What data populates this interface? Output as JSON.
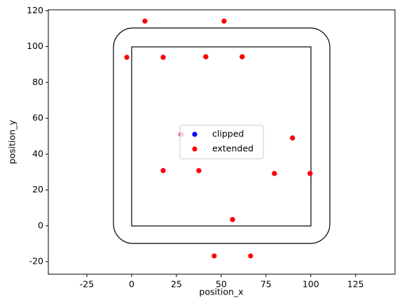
{
  "chart_data": {
    "type": "scatter",
    "xlabel": "position_x",
    "ylabel": "position_y",
    "xlim": [
      -46.5,
      147
    ],
    "ylim": [
      -27,
      120.5
    ],
    "xticks": [
      -25,
      0,
      25,
      50,
      75,
      100,
      125
    ],
    "yticks": [
      -20,
      0,
      20,
      40,
      60,
      80,
      100,
      120
    ],
    "legend": "center",
    "series": [
      {
        "name": "clipped",
        "color": "#0000ff",
        "x": [
          17.6,
          41.4,
          61.7,
          27.7,
          89.8,
          17.6,
          37.5,
          79.7,
          99.6,
          56.3
        ],
        "values": [
          94,
          94.3,
          94.3,
          51,
          49,
          30.8,
          30.8,
          29.2,
          29.2,
          3.5
        ]
      },
      {
        "name": "extended",
        "color": "#ff0000",
        "x": [
          7.4,
          51.6,
          -2.7,
          17.6,
          41.4,
          61.7,
          27.7,
          89.8,
          17.6,
          37.5,
          79.7,
          99.6,
          56.3,
          46.1,
          66.4
        ],
        "values": [
          114.2,
          114.2,
          94,
          94,
          94.3,
          94.3,
          51,
          49,
          30.8,
          30.8,
          29.2,
          29.2,
          3.5,
          -16.8,
          -16.8
        ]
      }
    ]
  }
}
